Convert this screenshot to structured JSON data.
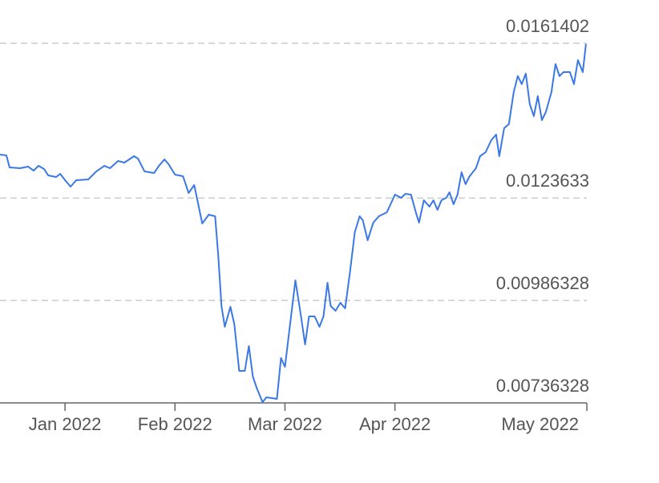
{
  "chart_data": {
    "type": "line",
    "color": "#3b78e7",
    "grid": true,
    "x": [
      0.409,
      0.467,
      0.496,
      0.591,
      0.664,
      0.715,
      0.759,
      0.81,
      0.847,
      0.92,
      0.956,
      1.007,
      1.051,
      1.102,
      1.212,
      1.285,
      1.358,
      1.409,
      1.482,
      1.54,
      1.628,
      1.664,
      1.723,
      1.81,
      1.854,
      1.905,
      1.942,
      2.0,
      2.073,
      2.124,
      2.175,
      2.248,
      2.307,
      2.365,
      2.394,
      2.423,
      2.453,
      2.504,
      2.54,
      2.584,
      2.635,
      2.672,
      2.708,
      2.745,
      2.796,
      2.832,
      2.927,
      2.964,
      3.0,
      3.051,
      3.095,
      3.146,
      3.183,
      3.219,
      3.27,
      3.314,
      3.35,
      3.387,
      3.416,
      3.46,
      3.504,
      3.547,
      3.591,
      3.635,
      3.679,
      3.708,
      3.752,
      3.803,
      3.854,
      3.927,
      4.0,
      4.058,
      4.095,
      4.146,
      4.19,
      4.219,
      4.263,
      4.314,
      4.35,
      4.387,
      4.423,
      4.467,
      4.496,
      4.533,
      4.569,
      4.606,
      4.642,
      4.679,
      4.737,
      4.774,
      4.825,
      4.876,
      4.92,
      4.949,
      4.993,
      5.036,
      5.08,
      5.117,
      5.153,
      5.19,
      5.226,
      5.263,
      5.299,
      5.336,
      5.372,
      5.423,
      5.46,
      5.496,
      5.533,
      5.591,
      5.628,
      5.664,
      5.708,
      5.737
    ],
    "values": [
      0.013423,
      0.013404,
      0.01311,
      0.013091,
      0.01313,
      0.013032,
      0.013149,
      0.013071,
      0.012915,
      0.012876,
      0.012954,
      0.012778,
      0.012641,
      0.012798,
      0.012817,
      0.013013,
      0.013149,
      0.013091,
      0.013267,
      0.013228,
      0.013384,
      0.013325,
      0.013013,
      0.012974,
      0.013149,
      0.013306,
      0.013189,
      0.012935,
      0.012895,
      0.012485,
      0.01268,
      0.011742,
      0.011957,
      0.011918,
      0.010941,
      0.0097286,
      0.0092204,
      0.0097091,
      0.009279,
      0.0081452,
      0.0081452,
      0.0087512,
      0.0080084,
      0.0077151,
      0.0073828,
      0.0075001,
      0.007461,
      0.008458,
      0.0082429,
      0.0093767,
      0.0103541,
      0.0094745,
      0.0087903,
      0.0094745,
      0.0094745,
      0.0092204,
      0.0094745,
      0.0102955,
      0.0097286,
      0.0096113,
      0.0098068,
      0.00967,
      0.0105496,
      0.011527,
      0.011918,
      0.01182,
      0.011332,
      0.011762,
      0.011918,
      0.012016,
      0.012446,
      0.012368,
      0.012465,
      0.012446,
      0.012016,
      0.011762,
      0.012309,
      0.012153,
      0.012309,
      0.012074,
      0.012309,
      0.012368,
      0.012504,
      0.012211,
      0.012446,
      0.012993,
      0.0127,
      0.012895,
      0.013091,
      0.013384,
      0.013482,
      0.013775,
      0.013912,
      0.013384,
      0.014068,
      0.014166,
      0.014948,
      0.015339,
      0.015143,
      0.015398,
      0.014655,
      0.014362,
      0.01485,
      0.014264,
      0.014459,
      0.014948,
      0.015632,
      0.015339,
      0.015437,
      0.015437,
      0.015143,
      0.01573,
      0.015437,
      0.016121
    ],
    "xlim": [
      0.409,
      5.745
    ],
    "xticks": [
      {
        "value": 1,
        "label": "Jan 2022"
      },
      {
        "value": 2,
        "label": "Feb 2022"
      },
      {
        "value": 3,
        "label": "Mar 2022"
      },
      {
        "value": 4,
        "label": "Apr 2022"
      },
      {
        "value": 5.745,
        "label": "May 2022"
      }
    ],
    "ylim": [
      0.00736328,
      0.0161402
    ],
    "yticks": [
      0.00736328,
      0.00986328,
      0.0123633,
      0.0161402
    ]
  }
}
